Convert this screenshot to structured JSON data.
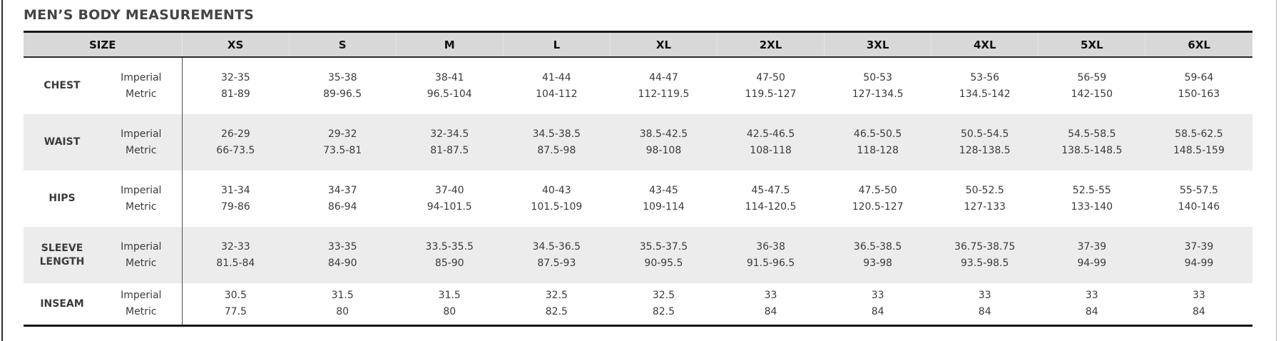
{
  "page": {
    "title": "MEN’S BODY MEASUREMENTS"
  },
  "table": {
    "header": {
      "size_label": "SIZE",
      "sizes": [
        "XS",
        "S",
        "M",
        "L",
        "XL",
        "2XL",
        "3XL",
        "4XL",
        "5XL",
        "6XL"
      ]
    },
    "unit_labels": {
      "imperial": "Imperial",
      "metric": "Metric"
    },
    "rows": [
      {
        "label": "CHEST",
        "imperial": [
          "32-35",
          "35-38",
          "38-41",
          "41-44",
          "44-47",
          "47-50",
          "50-53",
          "53-56",
          "56-59",
          "59-64"
        ],
        "metric": [
          "81-89",
          "89-96.5",
          "96.5-104",
          "104-112",
          "112-119.5",
          "119.5-127",
          "127-134.5",
          "134.5-142",
          "142-150",
          "150-163"
        ]
      },
      {
        "label": "WAIST",
        "imperial": [
          "26-29",
          "29-32",
          "32-34.5",
          "34.5-38.5",
          "38.5-42.5",
          "42.5-46.5",
          "46.5-50.5",
          "50.5-54.5",
          "54.5-58.5",
          "58.5-62.5"
        ],
        "metric": [
          "66-73.5",
          "73.5-81",
          "81-87.5",
          "87.5-98",
          "98-108",
          "108-118",
          "118-128",
          "128-138.5",
          "138.5-148.5",
          "148.5-159"
        ]
      },
      {
        "label": "HIPS",
        "imperial": [
          "31-34",
          "34-37",
          "37-40",
          "40-43",
          "43-45",
          "45-47.5",
          "47.5-50",
          "50-52.5",
          "52.5-55",
          "55-57.5"
        ],
        "metric": [
          "79-86",
          "86-94",
          "94-101.5",
          "101.5-109",
          "109-114",
          "114-120.5",
          "120.5-127",
          "127-133",
          "133-140",
          "140-146"
        ]
      },
      {
        "label": "SLEEVE LENGTH",
        "imperial": [
          "32-33",
          "33-35",
          "33.5-35.5",
          "34.5-36.5",
          "35.5-37.5",
          "36-38",
          "36.5-38.5",
          "36.75-38.75",
          "37-39",
          "37-39"
        ],
        "metric": [
          "81.5-84",
          "84-90",
          "85-90",
          "87.5-93",
          "90-95.5",
          "91.5-96.5",
          "93-98",
          "93.5-98.5",
          "94-99",
          "94-99"
        ]
      },
      {
        "label": "INSEAM",
        "imperial": [
          "30.5",
          "31.5",
          "31.5",
          "32.5",
          "32.5",
          "33",
          "33",
          "33",
          "33",
          "33"
        ],
        "metric": [
          "77.5",
          "80",
          "80",
          "82.5",
          "82.5",
          "84",
          "84",
          "84",
          "84",
          "84"
        ]
      }
    ]
  },
  "colors": {
    "header_bg": "#d8d8d8",
    "stripe_bg": "#ececec",
    "border_dark": "#111111",
    "divider": "#4c4c4c",
    "title_text": "#454545",
    "body_text": "#3b3b3b"
  }
}
